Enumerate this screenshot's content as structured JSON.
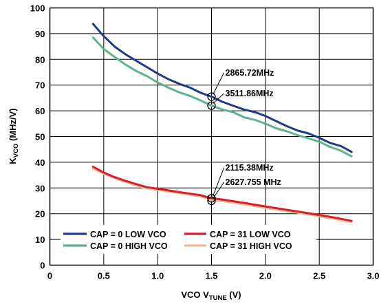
{
  "chart_data": {
    "type": "line",
    "xlabel": {
      "main": "VCO V",
      "sub": "TUNE",
      "unit": " (V)"
    },
    "ylabel": {
      "main": "K",
      "sub": "VCO",
      "unit": " (MHz/V)"
    },
    "xlim": [
      0,
      3.0
    ],
    "ylim": [
      0,
      100
    ],
    "x_ticks": [
      "0",
      "0.5",
      "1.0",
      "1.5",
      "2.0",
      "2.5",
      "3.0"
    ],
    "y_ticks": [
      "0",
      "10",
      "20",
      "30",
      "40",
      "50",
      "60",
      "70",
      "80",
      "90",
      "100"
    ],
    "grid": true,
    "legend_position": "bottom-left",
    "series": [
      {
        "name": "CAP = 0 LOW VCO",
        "color": "#1f3a8c",
        "points": [
          [
            0.4,
            93.8
          ],
          [
            0.5,
            89
          ],
          [
            0.6,
            85
          ],
          [
            0.7,
            82
          ],
          [
            0.8,
            79.5
          ],
          [
            0.9,
            77
          ],
          [
            1.0,
            74.5
          ],
          [
            1.1,
            72.3
          ],
          [
            1.2,
            70.5
          ],
          [
            1.3,
            69
          ],
          [
            1.4,
            67
          ],
          [
            1.5,
            65.5
          ],
          [
            1.6,
            63.5
          ],
          [
            1.7,
            62
          ],
          [
            1.8,
            60.5
          ],
          [
            1.9,
            59.5
          ],
          [
            2.0,
            58
          ],
          [
            2.1,
            56
          ],
          [
            2.2,
            54
          ],
          [
            2.3,
            52.3
          ],
          [
            2.4,
            51.2
          ],
          [
            2.5,
            49.5
          ],
          [
            2.6,
            47.5
          ],
          [
            2.7,
            46.3
          ],
          [
            2.8,
            44
          ]
        ]
      },
      {
        "name": "CAP = 0 HIGH VCO",
        "color": "#5db48a",
        "points": [
          [
            0.4,
            88.5
          ],
          [
            0.5,
            84
          ],
          [
            0.6,
            81
          ],
          [
            0.7,
            78
          ],
          [
            0.8,
            75.5
          ],
          [
            0.9,
            73.5
          ],
          [
            1.0,
            71
          ],
          [
            1.1,
            69
          ],
          [
            1.2,
            67.2
          ],
          [
            1.3,
            65.8
          ],
          [
            1.4,
            64
          ],
          [
            1.5,
            62
          ],
          [
            1.6,
            60.5
          ],
          [
            1.7,
            59.5
          ],
          [
            1.8,
            57.5
          ],
          [
            1.9,
            56.5
          ],
          [
            2.0,
            55
          ],
          [
            2.1,
            53.2
          ],
          [
            2.2,
            52
          ],
          [
            2.3,
            50.5
          ],
          [
            2.4,
            49.3
          ],
          [
            2.5,
            48
          ],
          [
            2.6,
            46
          ],
          [
            2.7,
            44.5
          ],
          [
            2.8,
            42.3
          ]
        ]
      },
      {
        "name": "CAP = 31 LOW VCO",
        "color": "#d41f2e",
        "points": [
          [
            0.4,
            38.3
          ],
          [
            0.5,
            36
          ],
          [
            0.6,
            34.2
          ],
          [
            0.7,
            32.8
          ],
          [
            0.8,
            31.5
          ],
          [
            0.9,
            30.3
          ],
          [
            1.0,
            29.7
          ],
          [
            1.2,
            28.4
          ],
          [
            1.4,
            27.2
          ],
          [
            1.5,
            26
          ],
          [
            1.6,
            25.5
          ],
          [
            1.8,
            24.2
          ],
          [
            2.0,
            22.8
          ],
          [
            2.2,
            21.5
          ],
          [
            2.4,
            20.2
          ],
          [
            2.6,
            18.8
          ],
          [
            2.8,
            17.2
          ]
        ]
      },
      {
        "name": "CAP = 31 HIGH VCO",
        "color": "#f7b891",
        "points": [
          [
            0.4,
            37.5
          ],
          [
            0.5,
            35.5
          ],
          [
            0.6,
            33.8
          ],
          [
            0.7,
            32.3
          ],
          [
            0.8,
            31
          ],
          [
            0.9,
            29.9
          ],
          [
            1.0,
            29.2
          ],
          [
            1.2,
            28
          ],
          [
            1.4,
            26.7
          ],
          [
            1.5,
            25.3
          ],
          [
            1.6,
            24.9
          ],
          [
            1.8,
            23.6
          ],
          [
            2.0,
            22.3
          ],
          [
            2.2,
            21
          ],
          [
            2.4,
            19.7
          ],
          [
            2.6,
            18.3
          ],
          [
            2.8,
            16.7
          ]
        ]
      }
    ],
    "annotations": [
      {
        "text": "2865.72MHz",
        "x": 1.5,
        "y": 65.5
      },
      {
        "text": "3511.86MHz",
        "x": 1.5,
        "y": 62
      },
      {
        "text": "2115.38MHz",
        "x": 1.5,
        "y": 26
      },
      {
        "text": "2627.755 MHz",
        "x": 1.5,
        "y": 25
      }
    ]
  }
}
